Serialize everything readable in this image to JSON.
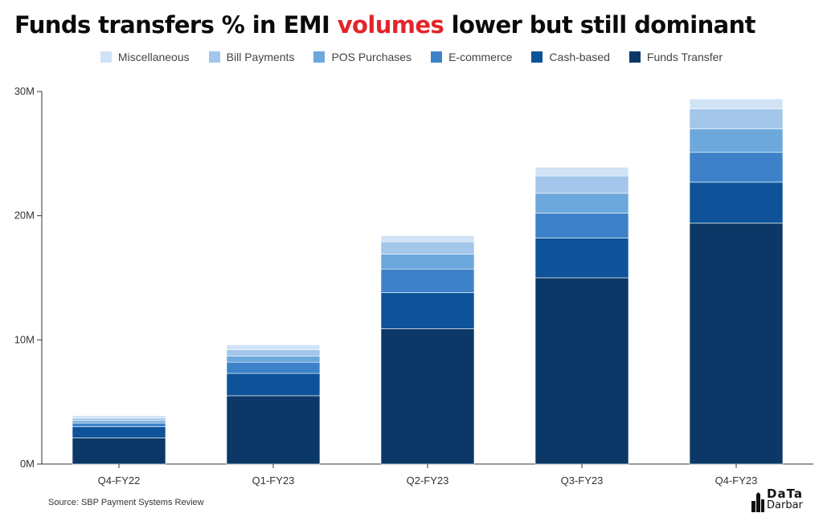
{
  "title": {
    "before": "Funds transfers % in EMI ",
    "highlight": "volumes",
    "after": " lower but still dominant"
  },
  "source": "Source: SBP Payment Systems Review",
  "logo": {
    "line1": "DaTa",
    "line2": "Darbar"
  },
  "colors": {
    "highlight": "#e3242b",
    "series": [
      "#0b3866",
      "#0e5399",
      "#3d82c8",
      "#6da8dc",
      "#a3c6ea",
      "#d0e3f5"
    ]
  },
  "chart_data": {
    "type": "bar",
    "stacked": true,
    "categories": [
      "Q4-FY22",
      "Q1-FY23",
      "Q2-FY23",
      "Q3-FY23",
      "Q4-FY23"
    ],
    "series": [
      {
        "name": "Funds Transfer",
        "values": [
          2.1,
          5.5,
          10.9,
          15.0,
          19.4
        ]
      },
      {
        "name": "Cash-based",
        "values": [
          0.9,
          1.8,
          2.9,
          3.2,
          3.3
        ]
      },
      {
        "name": "E-commerce",
        "values": [
          0.3,
          0.9,
          1.9,
          2.0,
          2.4
        ]
      },
      {
        "name": "POS Purchases",
        "values": [
          0.2,
          0.5,
          1.2,
          1.6,
          1.9
        ]
      },
      {
        "name": "Bill Payments",
        "values": [
          0.2,
          0.5,
          1.0,
          1.4,
          1.6
        ]
      },
      {
        "name": "Miscellaneous",
        "values": [
          0.2,
          0.4,
          0.5,
          0.7,
          0.8
        ]
      }
    ],
    "legend_order": [
      "Miscellaneous",
      "Bill Payments",
      "POS Purchases",
      "E-commerce",
      "Cash-based",
      "Funds Transfer"
    ],
    "y_unit": "M",
    "ylim": [
      0,
      30
    ],
    "yticks": [
      0,
      10,
      20,
      30
    ],
    "ytick_labels": [
      "0M",
      "10M",
      "20M",
      "30M"
    ],
    "legend_position": "top",
    "grid": false
  }
}
